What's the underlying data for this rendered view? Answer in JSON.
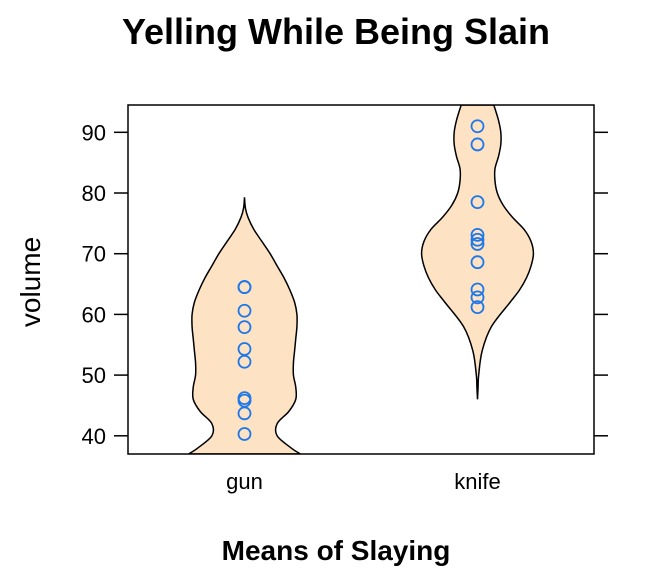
{
  "chart_data": {
    "type": "violin",
    "title": "Yelling While Being Slain",
    "xlabel": "Means of Slaying",
    "ylabel": "volume",
    "categories": [
      "gun",
      "knife"
    ],
    "ylim": [
      37,
      94.5
    ],
    "yticks": [
      40,
      50,
      60,
      70,
      80,
      90
    ],
    "grid": false,
    "colors": {
      "violin_fill": "#fde3c4",
      "violin_stroke": "#000000",
      "point_stroke": "#1f78e8"
    },
    "series": [
      {
        "category": "gun",
        "points": [
          40.3,
          43.7,
          45.8,
          46.2,
          52.2,
          54.3,
          57.9,
          60.6,
          64.5,
          64.5
        ],
        "violin_profile": [
          [
            37.0,
            0.48
          ],
          [
            38.0,
            0.4
          ],
          [
            40.0,
            0.28
          ],
          [
            42.0,
            0.28
          ],
          [
            44.0,
            0.38
          ],
          [
            46.0,
            0.44
          ],
          [
            48.0,
            0.44
          ],
          [
            50.0,
            0.42
          ],
          [
            52.0,
            0.42
          ],
          [
            54.0,
            0.43
          ],
          [
            56.0,
            0.44
          ],
          [
            58.0,
            0.45
          ],
          [
            60.0,
            0.45
          ],
          [
            62.0,
            0.43
          ],
          [
            64.0,
            0.39
          ],
          [
            66.0,
            0.34
          ],
          [
            68.0,
            0.28
          ],
          [
            70.0,
            0.22
          ],
          [
            72.0,
            0.15
          ],
          [
            74.0,
            0.08
          ],
          [
            76.0,
            0.03
          ],
          [
            77.5,
            0.008
          ],
          [
            79.3,
            0.0
          ]
        ]
      },
      {
        "category": "knife",
        "points": [
          61.2,
          62.8,
          64.1,
          68.6,
          71.6,
          72.3,
          73.1,
          78.5,
          88.0,
          91.0
        ],
        "violin_profile": [
          [
            46.0,
            0.0
          ],
          [
            48.0,
            0.005
          ],
          [
            50.0,
            0.01
          ],
          [
            54.0,
            0.04
          ],
          [
            58.0,
            0.12
          ],
          [
            62.0,
            0.28
          ],
          [
            64.0,
            0.36
          ],
          [
            66.0,
            0.42
          ],
          [
            68.0,
            0.46
          ],
          [
            70.0,
            0.48
          ],
          [
            72.0,
            0.46
          ],
          [
            74.0,
            0.4
          ],
          [
            76.0,
            0.3
          ],
          [
            78.0,
            0.22
          ],
          [
            80.0,
            0.17
          ],
          [
            82.0,
            0.15
          ],
          [
            84.0,
            0.15
          ],
          [
            86.0,
            0.18
          ],
          [
            88.0,
            0.2
          ],
          [
            90.0,
            0.2
          ],
          [
            92.0,
            0.18
          ],
          [
            94.5,
            0.14
          ]
        ]
      }
    ]
  }
}
